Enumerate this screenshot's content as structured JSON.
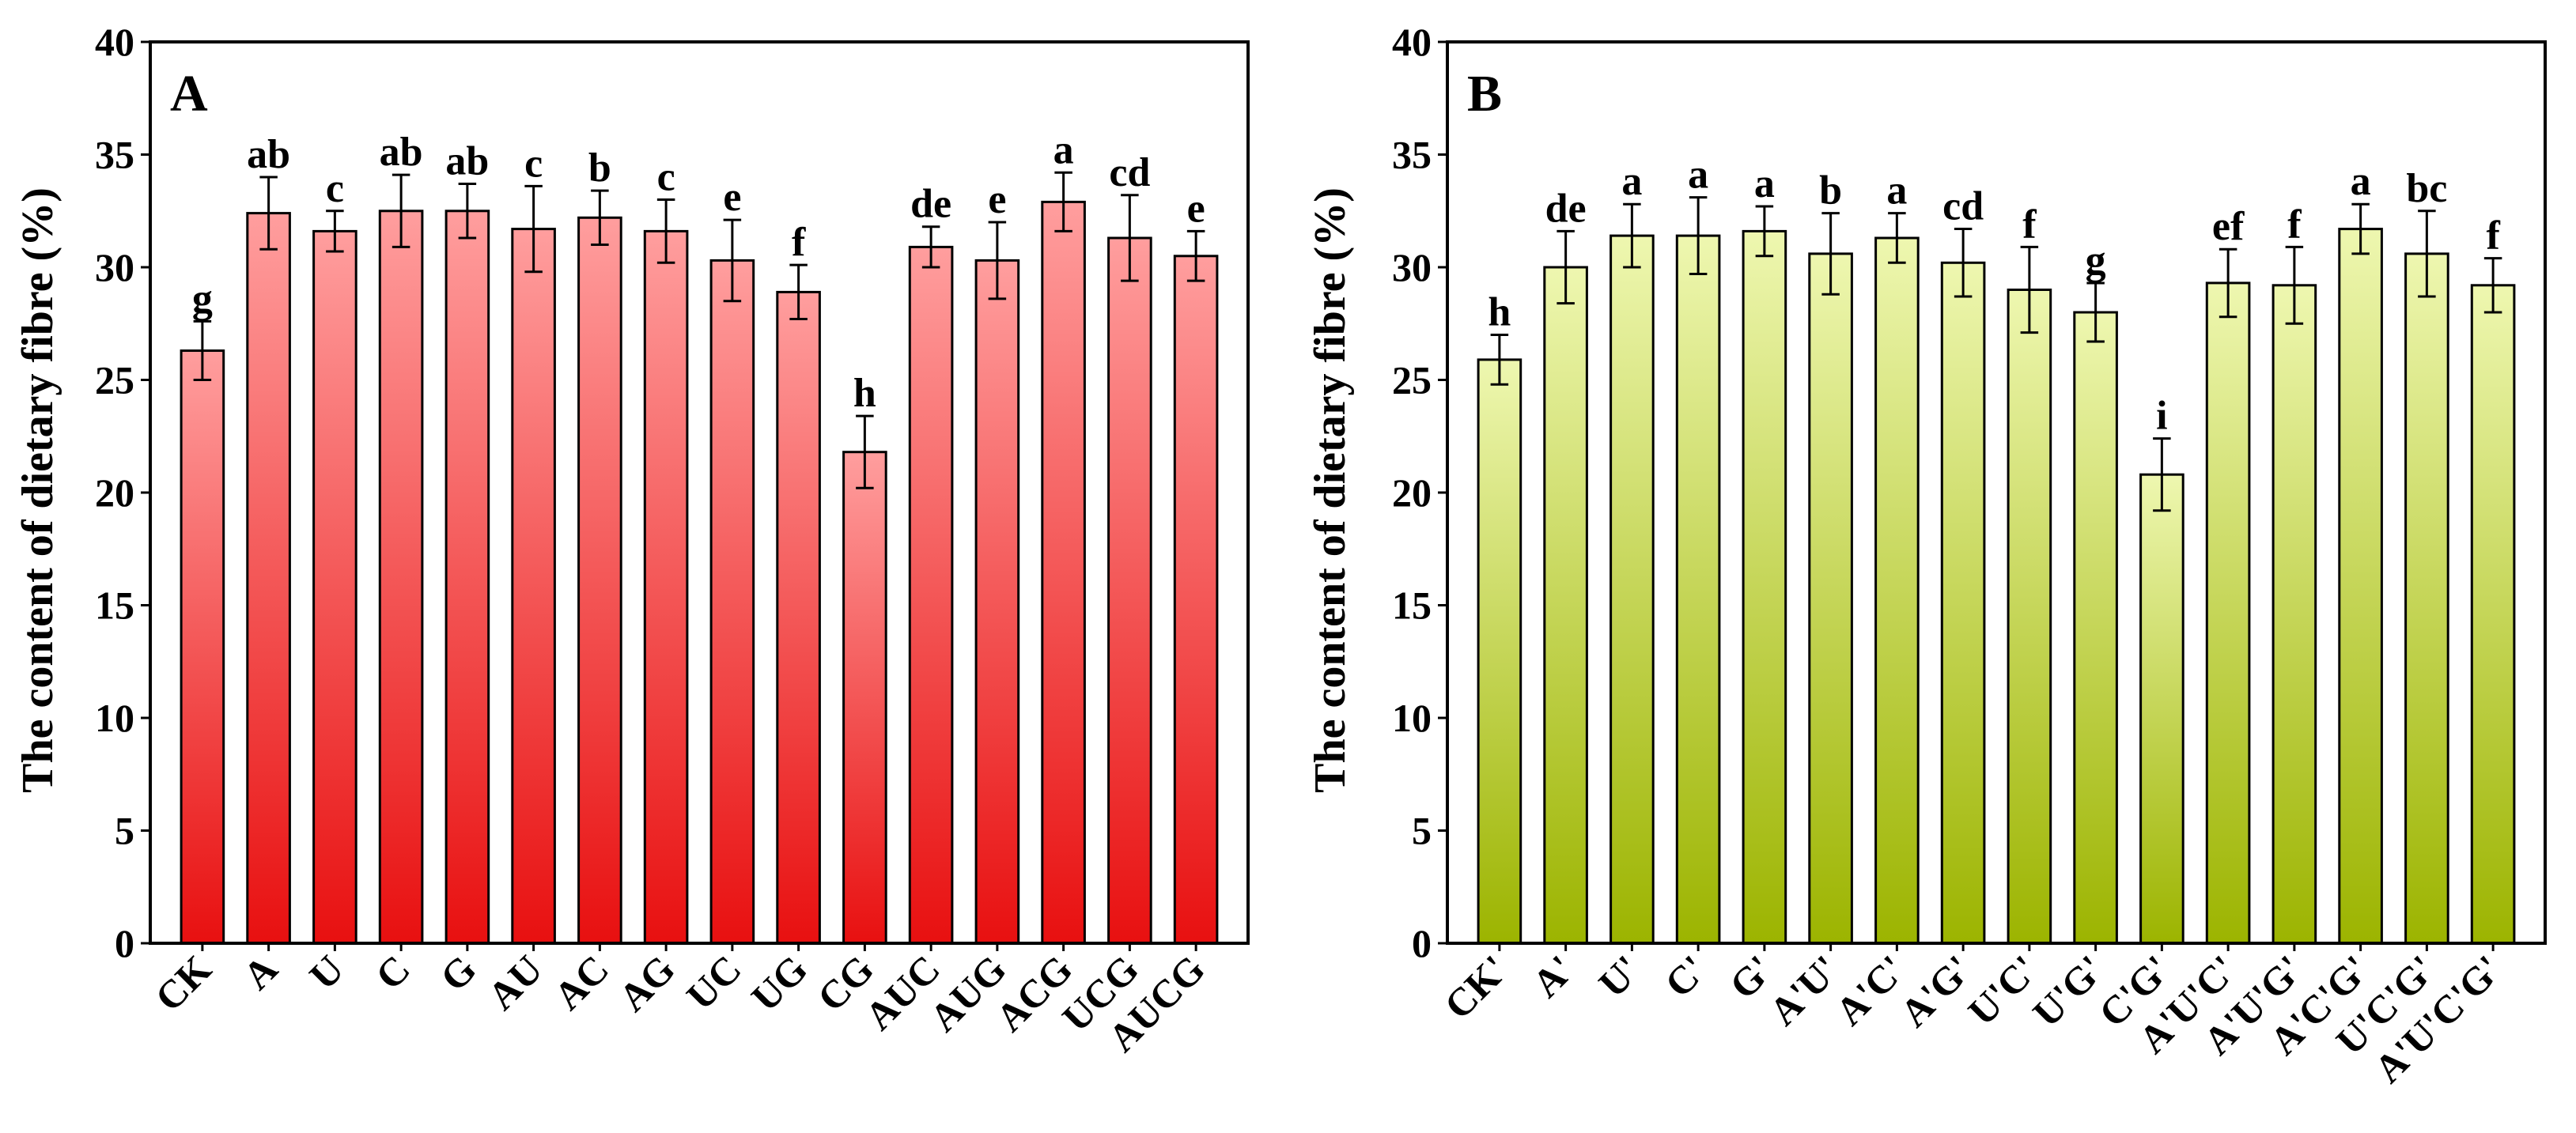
{
  "chart_data": [
    {
      "type": "bar",
      "panel": "A",
      "ylabel": "The content of dietary fibre (%)",
      "xlabel": "",
      "ylim": [
        0,
        40
      ],
      "yticks": [
        0,
        5,
        10,
        15,
        20,
        25,
        30,
        35,
        40
      ],
      "grid": false,
      "categories": [
        "CK",
        "A",
        "U",
        "C",
        "G",
        "AU",
        "AC",
        "AG",
        "UC",
        "UG",
        "CG",
        "AUC",
        "AUG",
        "ACG",
        "UCG",
        "AUCG"
      ],
      "values": [
        26.3,
        32.4,
        31.6,
        32.5,
        32.5,
        31.7,
        32.2,
        31.6,
        30.3,
        28.9,
        21.8,
        30.9,
        30.3,
        32.9,
        31.3,
        30.5
      ],
      "errors": [
        1.3,
        1.6,
        0.9,
        1.6,
        1.2,
        1.9,
        1.2,
        1.4,
        1.8,
        1.2,
        1.6,
        0.9,
        1.7,
        1.3,
        1.9,
        1.1
      ],
      "significance": [
        "g",
        "ab",
        "c",
        "ab",
        "ab",
        "c",
        "b",
        "c",
        "e",
        "f",
        "h",
        "de",
        "e",
        "a",
        "cd",
        "e"
      ],
      "colors": {
        "top": "#ff9e9e",
        "bottom": "#e81010"
      }
    },
    {
      "type": "bar",
      "panel": "B",
      "ylabel": "The content of dietary fibre (%)",
      "xlabel": "",
      "ylim": [
        0,
        40
      ],
      "yticks": [
        0,
        5,
        10,
        15,
        20,
        25,
        30,
        35,
        40
      ],
      "grid": false,
      "categories": [
        "CK'",
        "A'",
        "U'",
        "C'",
        "G'",
        "A'U'",
        "A'C'",
        "A'G'",
        "U'C'",
        "U'G'",
        "C'G'",
        "A'U'C'",
        "A'U'G'",
        "A'C'G'",
        "U'C'G'",
        "A'U'C'G'"
      ],
      "values": [
        25.9,
        30.0,
        31.4,
        31.4,
        31.6,
        30.6,
        31.3,
        30.2,
        29.0,
        28.0,
        20.8,
        29.3,
        29.2,
        31.7,
        30.6,
        29.2
      ],
      "errors": [
        1.1,
        1.6,
        1.4,
        1.7,
        1.1,
        1.8,
        1.1,
        1.5,
        1.9,
        1.3,
        1.6,
        1.5,
        1.7,
        1.1,
        1.9,
        1.2
      ],
      "significance": [
        "h",
        "de",
        "a",
        "a",
        "a",
        "b",
        "a",
        "cd",
        "f",
        "g",
        "i",
        "ef",
        "f",
        "a",
        "bc",
        "f"
      ],
      "colors": {
        "top": "#eef7b0",
        "bottom": "#9cb400"
      }
    }
  ]
}
